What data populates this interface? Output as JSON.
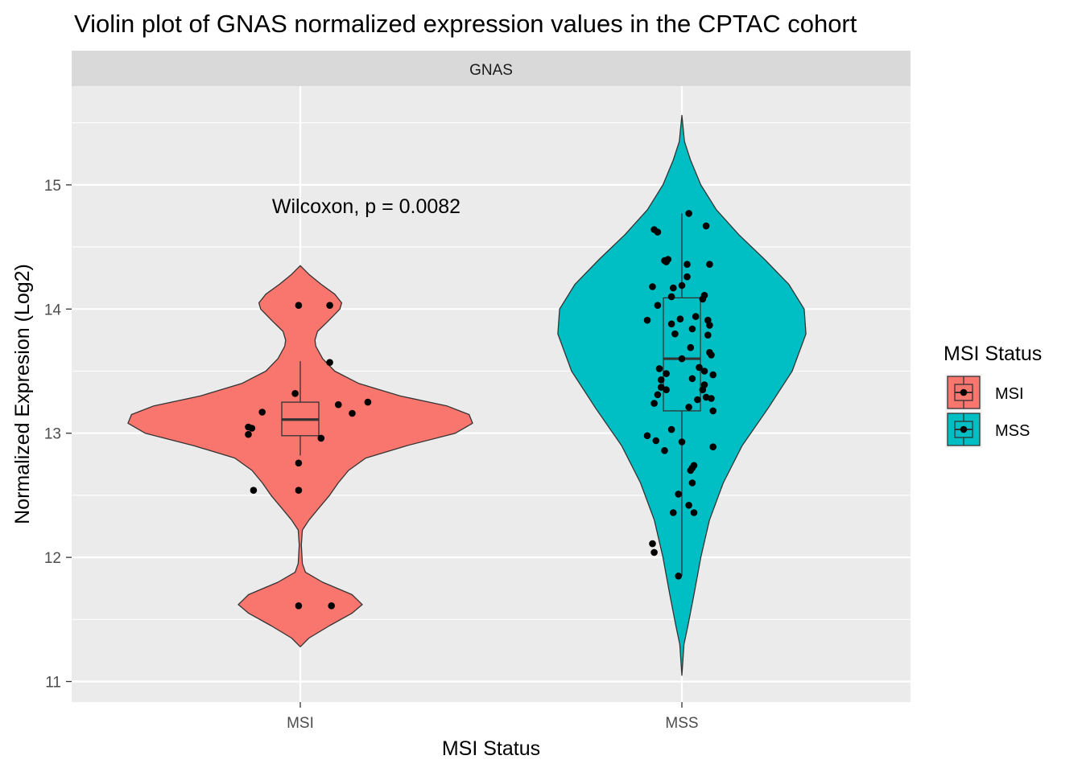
{
  "chart_data": {
    "type": "violin",
    "title": "Violin plot of GNAS normalized expression values in the CPTAC cohort",
    "facet_label": "GNAS",
    "xlabel": "MSI Status",
    "ylabel": "Normalized Expresion (Log2)",
    "categories": [
      "MSI",
      "MSS"
    ],
    "ylim": [
      10.8,
      15.9
    ],
    "yticks": [
      11,
      12,
      13,
      14,
      15
    ],
    "annotation": "Wilcoxon, p = 0.0082",
    "legend": {
      "title": "MSI Status",
      "position": "right",
      "entries": [
        {
          "label": "MSI",
          "color": "#F8766D"
        },
        {
          "label": "MSS",
          "color": "#00BFC4"
        }
      ]
    },
    "series": [
      {
        "name": "MSI",
        "color": "#F8766D",
        "box": {
          "q1": 12.98,
          "median": 13.11,
          "q3": 13.25,
          "whisker_low": 12.82,
          "whisker_high": 13.58
        },
        "density_range": [
          11.28,
          14.35
        ],
        "density": [
          [
            11.28,
            0.0
          ],
          [
            11.35,
            0.05
          ],
          [
            11.45,
            0.17
          ],
          [
            11.55,
            0.3
          ],
          [
            11.62,
            0.36
          ],
          [
            11.7,
            0.3
          ],
          [
            11.8,
            0.13
          ],
          [
            11.88,
            0.03
          ],
          [
            11.95,
            0.012
          ],
          [
            12.1,
            0.006
          ],
          [
            12.22,
            0.012
          ],
          [
            12.3,
            0.05
          ],
          [
            12.4,
            0.11
          ],
          [
            12.5,
            0.17
          ],
          [
            12.6,
            0.22
          ],
          [
            12.7,
            0.28
          ],
          [
            12.8,
            0.38
          ],
          [
            12.9,
            0.62
          ],
          [
            13.0,
            0.9
          ],
          [
            13.08,
            1.0
          ],
          [
            13.15,
            0.98
          ],
          [
            13.22,
            0.85
          ],
          [
            13.3,
            0.58
          ],
          [
            13.4,
            0.34
          ],
          [
            13.5,
            0.2
          ],
          [
            13.6,
            0.13
          ],
          [
            13.7,
            0.09
          ],
          [
            13.75,
            0.085
          ],
          [
            13.82,
            0.1
          ],
          [
            13.9,
            0.16
          ],
          [
            14.0,
            0.23
          ],
          [
            14.05,
            0.24
          ],
          [
            14.12,
            0.2
          ],
          [
            14.2,
            0.12
          ],
          [
            14.28,
            0.05
          ],
          [
            14.35,
            0.0
          ]
        ],
        "points": [
          [
            -0.01,
            14.03
          ],
          [
            0.17,
            14.03
          ],
          [
            0.17,
            13.57
          ],
          [
            -0.03,
            13.32
          ],
          [
            0.22,
            13.23
          ],
          [
            0.39,
            13.25
          ],
          [
            0.3,
            13.16
          ],
          [
            -0.22,
            13.17
          ],
          [
            -0.3,
            13.05
          ],
          [
            -0.28,
            13.04
          ],
          [
            -0.3,
            12.99
          ],
          [
            0.12,
            12.96
          ],
          [
            -0.01,
            12.76
          ],
          [
            -0.27,
            12.54
          ],
          [
            -0.01,
            12.54
          ],
          [
            -0.01,
            11.61
          ],
          [
            0.18,
            11.61
          ]
        ]
      },
      {
        "name": "MSS",
        "color": "#00BFC4",
        "box": {
          "q1": 13.18,
          "median": 13.6,
          "q3": 14.09,
          "whisker_low": 11.85,
          "whisker_high": 14.77
        },
        "density_range": [
          11.05,
          15.56
        ],
        "density": [
          [
            11.05,
            0.0
          ],
          [
            11.3,
            0.012
          ],
          [
            11.45,
            0.035
          ],
          [
            11.7,
            0.07
          ],
          [
            12.0,
            0.11
          ],
          [
            12.3,
            0.16
          ],
          [
            12.6,
            0.24
          ],
          [
            12.9,
            0.35
          ],
          [
            13.2,
            0.5
          ],
          [
            13.5,
            0.64
          ],
          [
            13.8,
            0.72
          ],
          [
            14.0,
            0.71
          ],
          [
            14.2,
            0.62
          ],
          [
            14.4,
            0.48
          ],
          [
            14.6,
            0.33
          ],
          [
            14.8,
            0.2
          ],
          [
            15.0,
            0.11
          ],
          [
            15.2,
            0.05
          ],
          [
            15.35,
            0.015
          ],
          [
            15.56,
            0.0
          ]
        ],
        "points": [
          [
            0.04,
            14.77
          ],
          [
            0.14,
            14.67
          ],
          [
            -0.16,
            14.64
          ],
          [
            -0.14,
            14.62
          ],
          [
            -0.1,
            14.39
          ],
          [
            -0.08,
            14.4
          ],
          [
            0.03,
            14.36
          ],
          [
            0.16,
            14.36
          ],
          [
            -0.09,
            14.38
          ],
          [
            0.03,
            14.26
          ],
          [
            -0.17,
            14.18
          ],
          [
            -0.05,
            14.17
          ],
          [
            0.0,
            14.19
          ],
          [
            0.13,
            14.11
          ],
          [
            -0.06,
            14.1
          ],
          [
            0.12,
            14.08
          ],
          [
            -0.14,
            14.03
          ],
          [
            -0.01,
            13.92
          ],
          [
            0.08,
            13.94
          ],
          [
            -0.2,
            13.91
          ],
          [
            0.15,
            13.91
          ],
          [
            0.16,
            13.87
          ],
          [
            -0.06,
            13.88
          ],
          [
            -0.04,
            13.8
          ],
          [
            0.15,
            13.79
          ],
          [
            0.06,
            13.84
          ],
          [
            0.16,
            13.65
          ],
          [
            0.17,
            13.63
          ],
          [
            0.05,
            13.69
          ],
          [
            0.0,
            13.6
          ],
          [
            0.1,
            13.53
          ],
          [
            -0.13,
            13.52
          ],
          [
            0.13,
            13.5
          ],
          [
            -0.12,
            13.43
          ],
          [
            -0.09,
            13.48
          ],
          [
            0.06,
            13.44
          ],
          [
            0.18,
            13.47
          ],
          [
            0.13,
            13.39
          ],
          [
            -0.12,
            13.37
          ],
          [
            -0.09,
            13.35
          ],
          [
            0.12,
            13.35
          ],
          [
            -0.14,
            13.31
          ],
          [
            0.14,
            13.29
          ],
          [
            0.17,
            13.28
          ],
          [
            0.09,
            13.27
          ],
          [
            -0.16,
            13.24
          ],
          [
            0.04,
            13.21
          ],
          [
            0.18,
            13.18
          ],
          [
            -0.06,
            13.03
          ],
          [
            -0.2,
            12.98
          ],
          [
            -0.15,
            12.94
          ],
          [
            0.0,
            12.93
          ],
          [
            0.18,
            12.89
          ],
          [
            -0.1,
            12.86
          ],
          [
            0.07,
            12.74
          ],
          [
            0.06,
            12.72
          ],
          [
            0.05,
            12.7
          ],
          [
            0.06,
            12.6
          ],
          [
            -0.02,
            12.51
          ],
          [
            -0.05,
            12.36
          ],
          [
            0.07,
            12.36
          ],
          [
            0.04,
            12.42
          ],
          [
            -0.17,
            12.11
          ],
          [
            -0.16,
            12.04
          ],
          [
            -0.02,
            11.85
          ]
        ]
      }
    ]
  }
}
